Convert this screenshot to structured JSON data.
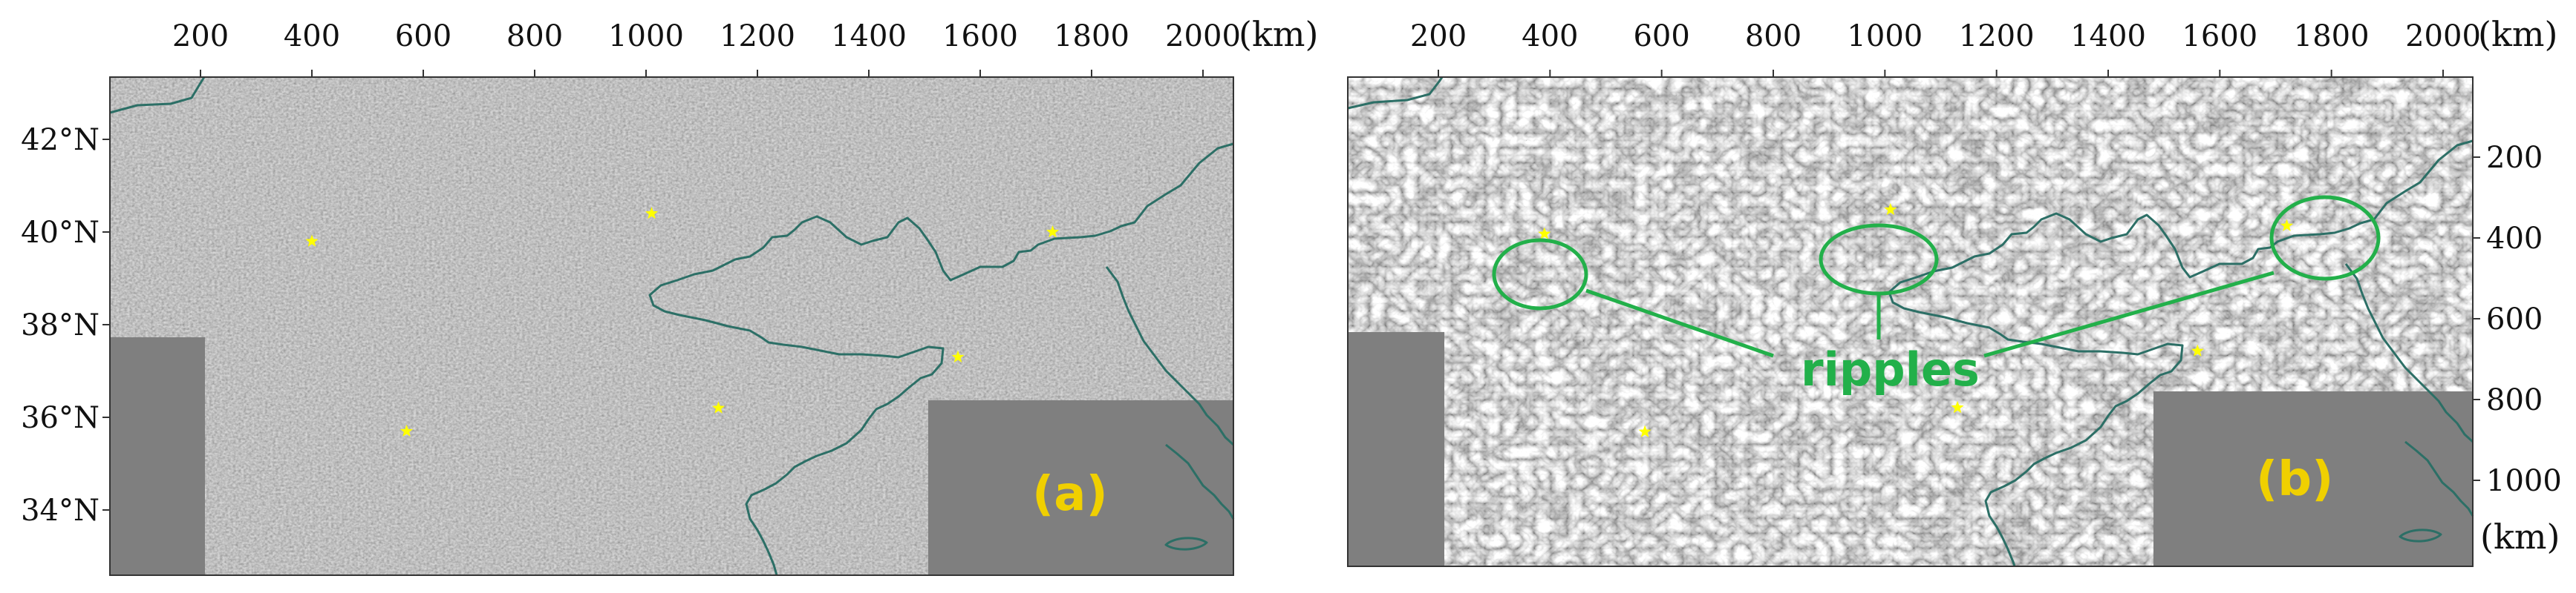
{
  "colors": {
    "noise_base": "#8a8a8a",
    "flat_fill": "#7f7f7f",
    "coastline": "#2c6f66",
    "star": "#ffff00",
    "panel_label_paren": "#f0d000",
    "panel_label_letter": "#f0d000",
    "annotation": "#22b04a"
  },
  "panel_a": {
    "label_open": "(",
    "label_letter": "a",
    "label_close": ")",
    "x_unit": "(km)",
    "x_ticks": [
      200,
      400,
      600,
      800,
      1000,
      1200,
      1400,
      1600,
      1800,
      2000
    ],
    "x_tick_labels": [
      "200",
      "400",
      "600",
      "800",
      "1000",
      "1200",
      "1400",
      "1600",
      "1800",
      "2000"
    ],
    "lat_ticks": [
      42,
      40,
      38,
      36,
      34
    ],
    "lat_tick_labels": [
      "42°N",
      "40°N",
      "38°N",
      "36°N",
      "34°N"
    ],
    "stars_km": [
      {
        "x": 400,
        "lat": 39.8
      },
      {
        "x": 1010,
        "lat": 40.4
      },
      {
        "x": 1730,
        "lat": 40.0
      },
      {
        "x": 1560,
        "lat": 37.3
      },
      {
        "x": 1130,
        "lat": 36.2
      },
      {
        "x": 570,
        "lat": 35.7
      }
    ]
  },
  "panel_b": {
    "label_open": "(",
    "label_letter": "b",
    "label_close": ")",
    "x_unit": "(km)",
    "y_unit": "(km)",
    "x_ticks": [
      200,
      400,
      600,
      800,
      1000,
      1200,
      1400,
      1600,
      1800,
      2000
    ],
    "x_tick_labels": [
      "200",
      "400",
      "600",
      "800",
      "1000",
      "1200",
      "1400",
      "1600",
      "1800",
      "2000"
    ],
    "y_ticks": [
      200,
      400,
      600,
      800,
      1000
    ],
    "y_tick_labels": [
      "200",
      "400",
      "600",
      "800",
      "1000"
    ],
    "annotation_text": "ripples",
    "stars_km": [
      {
        "x": 390,
        "y": 390
      },
      {
        "x": 1010,
        "y": 330
      },
      {
        "x": 1720,
        "y": 370
      },
      {
        "x": 1560,
        "y": 680
      },
      {
        "x": 1130,
        "y": 820
      },
      {
        "x": 570,
        "y": 880
      }
    ]
  }
}
